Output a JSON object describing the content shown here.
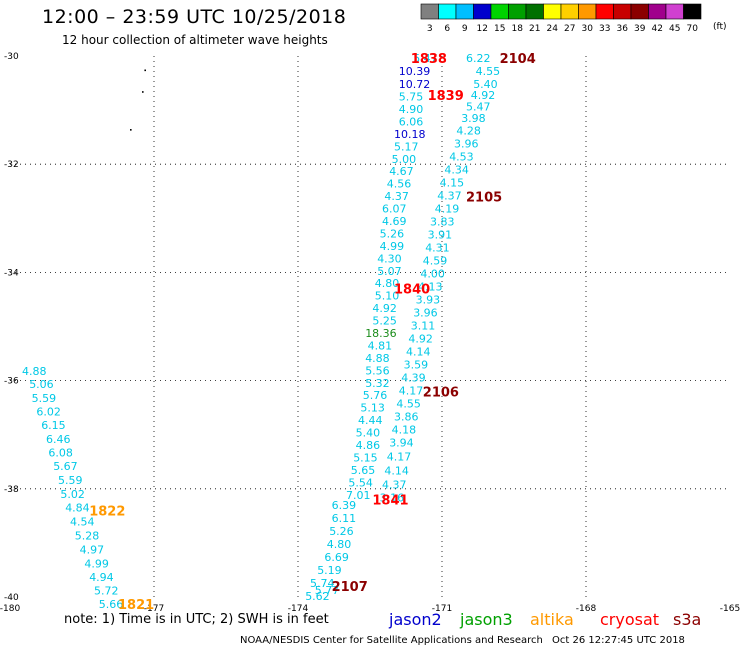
{
  "header": {
    "title": "12:00 – 23:59 UTC 10/25/2018",
    "subtitle": "12 hour collection of altimeter wave heights"
  },
  "colorbar": {
    "units": "(ft)",
    "bins": [
      {
        "label": "3",
        "color": "#808080"
      },
      {
        "label": "6",
        "color": "#00ffff"
      },
      {
        "label": "9",
        "color": "#00bfff"
      },
      {
        "label": "12",
        "color": "#0000cd"
      },
      {
        "label": "15",
        "color": "#00d400"
      },
      {
        "label": "18",
        "color": "#00a000"
      },
      {
        "label": "21",
        "color": "#007000"
      },
      {
        "label": "24",
        "color": "#ffff00"
      },
      {
        "label": "27",
        "color": "#ffd000"
      },
      {
        "label": "30",
        "color": "#ff9900"
      },
      {
        "label": "33",
        "color": "#ff0000"
      },
      {
        "label": "36",
        "color": "#c80000"
      },
      {
        "label": "39",
        "color": "#8b0000"
      },
      {
        "label": "42",
        "color": "#a0008c"
      },
      {
        "label": "45",
        "color": "#d040d0"
      },
      {
        "label": "70",
        "color": "#000000"
      }
    ]
  },
  "footer": {
    "note": "note:  1) Time is in UTC;  2) SWH is in feet",
    "credit": "NOAA/NESDIS Center for Satellite Applications and Research",
    "timestamp": "Oct 26 12:27:45 UTC 2018",
    "satellites": [
      {
        "name": "jason2",
        "color": "#0000cd"
      },
      {
        "name": "jason3",
        "color": "#00a000"
      },
      {
        "name": "altika",
        "color": "#ff9900"
      },
      {
        "name": "cryosat",
        "color": "#ff0000"
      },
      {
        "name": "s3a",
        "color": "#8b0000"
      }
    ]
  },
  "chart_data": {
    "type": "scatter",
    "xlim": [
      -180,
      -165
    ],
    "ylim": [
      -40,
      -30
    ],
    "x_ticks": [
      "-180",
      "-177",
      "-174",
      "-171",
      "-168",
      "-165"
    ],
    "y_ticks": [
      "-30",
      "-32",
      "-34",
      "-36",
      "-38",
      "-40"
    ],
    "grid": true,
    "colors": {
      "c6": "#00c8e6",
      "c12": "#0000cd",
      "c18": "#1a8c1a",
      "alt": "#ff9900",
      "cry": "#ff0000",
      "s3a": "#8b0000"
    },
    "series": [
      {
        "name": "track-1838",
        "points": [
          {
            "lon": -170.5,
            "lat": -30.04,
            "v": "6.22",
            "c": "c6"
          },
          {
            "lon": -170.3,
            "lat": -30.28,
            "v": "4.55",
            "c": "c6"
          },
          {
            "lon": -170.35,
            "lat": -30.52,
            "v": "5.40",
            "c": "c6"
          },
          {
            "lon": -170.4,
            "lat": -30.72,
            "v": "4.92",
            "c": "c6"
          },
          {
            "lon": -170.5,
            "lat": -30.93,
            "v": "5.47",
            "c": "c6"
          },
          {
            "lon": -170.6,
            "lat": -31.15,
            "v": "3.98",
            "c": "c6"
          },
          {
            "lon": -170.7,
            "lat": -31.38,
            "v": "4.28",
            "c": "c6"
          },
          {
            "lon": -170.75,
            "lat": -31.62,
            "v": "3.96",
            "c": "c6"
          },
          {
            "lon": -170.85,
            "lat": -31.86,
            "v": "4.53",
            "c": "c6"
          },
          {
            "lon": -170.95,
            "lat": -32.1,
            "v": "4.34",
            "c": "c6"
          },
          {
            "lon": -171.05,
            "lat": -32.34,
            "v": "4.15",
            "c": "c6"
          },
          {
            "lon": -171.1,
            "lat": -32.58,
            "v": "4.37",
            "c": "c6"
          },
          {
            "lon": -171.15,
            "lat": -32.82,
            "v": "4.19",
            "c": "c6"
          },
          {
            "lon": -171.25,
            "lat": -33.06,
            "v": "3.83",
            "c": "c6"
          },
          {
            "lon": -171.3,
            "lat": -33.3,
            "v": "3.91",
            "c": "c6"
          },
          {
            "lon": -171.35,
            "lat": -33.54,
            "v": "4.31",
            "c": "c6"
          },
          {
            "lon": -171.4,
            "lat": -33.78,
            "v": "4.59",
            "c": "c6"
          },
          {
            "lon": -171.45,
            "lat": -34.02,
            "v": "4.00",
            "c": "c6"
          },
          {
            "lon": -171.5,
            "lat": -34.26,
            "v": "4.13",
            "c": "c6"
          },
          {
            "lon": -171.55,
            "lat": -34.5,
            "v": "3.93",
            "c": "c6"
          },
          {
            "lon": -171.6,
            "lat": -34.74,
            "v": "3.96",
            "c": "c6"
          },
          {
            "lon": -171.65,
            "lat": -34.98,
            "v": "3.11",
            "c": "c6"
          },
          {
            "lon": -171.7,
            "lat": -35.22,
            "v": "4.92",
            "c": "c6"
          },
          {
            "lon": -171.75,
            "lat": -35.46,
            "v": "4.14",
            "c": "c6"
          },
          {
            "lon": -171.8,
            "lat": -35.7,
            "v": "3.59",
            "c": "c6"
          },
          {
            "lon": -171.85,
            "lat": -35.94,
            "v": "4.39",
            "c": "c6"
          },
          {
            "lon": -171.9,
            "lat": -36.18,
            "v": "4.17",
            "c": "c6"
          },
          {
            "lon": -171.95,
            "lat": -36.42,
            "v": "4.55",
            "c": "c6"
          },
          {
            "lon": -172.0,
            "lat": -36.66,
            "v": "3.86",
            "c": "c6"
          },
          {
            "lon": -172.05,
            "lat": -36.9,
            "v": "4.18",
            "c": "c6"
          },
          {
            "lon": -172.1,
            "lat": -37.14,
            "v": "3.94",
            "c": "c6"
          },
          {
            "lon": -172.15,
            "lat": -37.4,
            "v": "4.17",
            "c": "c6"
          },
          {
            "lon": -172.2,
            "lat": -37.66,
            "v": "4.14",
            "c": "c6"
          },
          {
            "lon": -172.25,
            "lat": -37.92,
            "v": "4.37",
            "c": "c6"
          },
          {
            "lon": -172.3,
            "lat": -38.16,
            "v": "3.16",
            "c": "c6"
          }
        ]
      },
      {
        "name": "track-1839-1840",
        "points": [
          {
            "lon": -171.6,
            "lat": -30.04,
            "v": "5.47",
            "c": "c6"
          },
          {
            "lon": -171.9,
            "lat": -30.28,
            "v": "10.39",
            "c": "c12"
          },
          {
            "lon": -171.9,
            "lat": -30.52,
            "v": "10.72",
            "c": "c12"
          },
          {
            "lon": -171.9,
            "lat": -30.75,
            "v": "5.75",
            "c": "c6"
          },
          {
            "lon": -171.9,
            "lat": -30.98,
            "v": "4.90",
            "c": "c6"
          },
          {
            "lon": -171.9,
            "lat": -31.21,
            "v": "6.06",
            "c": "c6"
          },
          {
            "lon": -172.0,
            "lat": -31.44,
            "v": "10.18",
            "c": "c12"
          },
          {
            "lon": -172.0,
            "lat": -31.67,
            "v": "5.17",
            "c": "c6"
          },
          {
            "lon": -172.05,
            "lat": -31.9,
            "v": "5.00",
            "c": "c6"
          },
          {
            "lon": -172.1,
            "lat": -32.13,
            "v": "4.67",
            "c": "c6"
          },
          {
            "lon": -172.15,
            "lat": -32.36,
            "v": "4.56",
            "c": "c6"
          },
          {
            "lon": -172.2,
            "lat": -32.59,
            "v": "4.37",
            "c": "c6"
          },
          {
            "lon": -172.25,
            "lat": -32.82,
            "v": "6.07",
            "c": "c6"
          },
          {
            "lon": -172.25,
            "lat": -33.05,
            "v": "4.69",
            "c": "c6"
          },
          {
            "lon": -172.3,
            "lat": -33.28,
            "v": "5.26",
            "c": "c6"
          },
          {
            "lon": -172.3,
            "lat": -33.51,
            "v": "4.99",
            "c": "c6"
          },
          {
            "lon": -172.35,
            "lat": -33.74,
            "v": "4.30",
            "c": "c6"
          },
          {
            "lon": -172.35,
            "lat": -33.97,
            "v": "5.07",
            "c": "c6"
          },
          {
            "lon": -172.4,
            "lat": -34.2,
            "v": "4.80",
            "c": "c6"
          },
          {
            "lon": -172.4,
            "lat": -34.43,
            "v": "5.10",
            "c": "c6"
          },
          {
            "lon": -172.45,
            "lat": -34.66,
            "v": "4.92",
            "c": "c6"
          },
          {
            "lon": -172.45,
            "lat": -34.89,
            "v": "5.25",
            "c": "c6"
          },
          {
            "lon": -172.6,
            "lat": -35.12,
            "v": "18.36",
            "c": "c18"
          },
          {
            "lon": -172.55,
            "lat": -35.35,
            "v": "4.81",
            "c": "c6"
          },
          {
            "lon": -172.6,
            "lat": -35.58,
            "v": "4.88",
            "c": "c6"
          },
          {
            "lon": -172.6,
            "lat": -35.81,
            "v": "5.56",
            "c": "c6"
          },
          {
            "lon": -172.6,
            "lat": -36.04,
            "v": "5.32",
            "c": "c6"
          },
          {
            "lon": -172.65,
            "lat": -36.27,
            "v": "5.76",
            "c": "c6"
          },
          {
            "lon": -172.7,
            "lat": -36.5,
            "v": "5.13",
            "c": "c6"
          },
          {
            "lon": -172.75,
            "lat": -36.73,
            "v": "4.44",
            "c": "c6"
          },
          {
            "lon": -172.8,
            "lat": -36.96,
            "v": "5.40",
            "c": "c6"
          },
          {
            "lon": -172.8,
            "lat": -37.19,
            "v": "4.86",
            "c": "c6"
          },
          {
            "lon": -172.85,
            "lat": -37.42,
            "v": "5.15",
            "c": "c6"
          },
          {
            "lon": -172.9,
            "lat": -37.65,
            "v": "5.65",
            "c": "c6"
          },
          {
            "lon": -172.95,
            "lat": -37.88,
            "v": "5.54",
            "c": "c6"
          },
          {
            "lon": -173.0,
            "lat": -38.11,
            "v": "7.01",
            "c": "c6"
          }
        ]
      },
      {
        "name": "track-2107",
        "points": [
          {
            "lon": -173.3,
            "lat": -38.3,
            "v": "6.39",
            "c": "c6"
          },
          {
            "lon": -173.3,
            "lat": -38.54,
            "v": "6.11",
            "c": "c6"
          },
          {
            "lon": -173.35,
            "lat": -38.78,
            "v": "5.26",
            "c": "c6"
          },
          {
            "lon": -173.4,
            "lat": -39.02,
            "v": "4.80",
            "c": "c6"
          },
          {
            "lon": -173.45,
            "lat": -39.26,
            "v": "6.69",
            "c": "c6"
          },
          {
            "lon": -173.6,
            "lat": -39.5,
            "v": "5.19",
            "c": "c6"
          },
          {
            "lon": -173.75,
            "lat": -39.74,
            "v": "5.74",
            "c": "c6"
          },
          {
            "lon": -173.65,
            "lat": -39.87,
            "v": "5.77",
            "c": "c6"
          },
          {
            "lon": -173.85,
            "lat": -39.98,
            "v": "5.62",
            "c": "c6"
          }
        ]
      },
      {
        "name": "track-1822-1821",
        "points": [
          {
            "lon": -179.75,
            "lat": -35.82,
            "v": "4.88",
            "c": "c6"
          },
          {
            "lon": -179.6,
            "lat": -36.06,
            "v": "5.06",
            "c": "c6"
          },
          {
            "lon": -179.55,
            "lat": -36.32,
            "v": "5.59",
            "c": "c6"
          },
          {
            "lon": -179.45,
            "lat": -36.57,
            "v": "6.02",
            "c": "c6"
          },
          {
            "lon": -179.35,
            "lat": -36.82,
            "v": "6.15",
            "c": "c6"
          },
          {
            "lon": -179.25,
            "lat": -37.08,
            "v": "6.46",
            "c": "c6"
          },
          {
            "lon": -179.2,
            "lat": -37.33,
            "v": "6.08",
            "c": "c6"
          },
          {
            "lon": -179.1,
            "lat": -37.58,
            "v": "5.67",
            "c": "c6"
          },
          {
            "lon": -179.0,
            "lat": -37.84,
            "v": "5.59",
            "c": "c6"
          },
          {
            "lon": -178.95,
            "lat": -38.1,
            "v": "5.02",
            "c": "c6"
          },
          {
            "lon": -178.85,
            "lat": -38.35,
            "v": "4.84",
            "c": "c6"
          },
          {
            "lon": -178.75,
            "lat": -38.6,
            "v": "4.54",
            "c": "c6"
          },
          {
            "lon": -178.65,
            "lat": -38.86,
            "v": "5.28",
            "c": "c6"
          },
          {
            "lon": -178.55,
            "lat": -39.12,
            "v": "4.97",
            "c": "c6"
          },
          {
            "lon": -178.45,
            "lat": -39.38,
            "v": "4.99",
            "c": "c6"
          },
          {
            "lon": -178.35,
            "lat": -39.63,
            "v": "4.94",
            "c": "c6"
          },
          {
            "lon": -178.25,
            "lat": -39.88,
            "v": "5.72",
            "c": "c6"
          },
          {
            "lon": -178.15,
            "lat": -40.13,
            "v": "5.66",
            "c": "c6"
          }
        ]
      }
    ],
    "time_labels": [
      {
        "lon": -171.65,
        "lat": -30.04,
        "t": "1838",
        "c": "cry"
      },
      {
        "lon": -169.8,
        "lat": -30.04,
        "t": "2104",
        "c": "s3a"
      },
      {
        "lon": -171.3,
        "lat": -30.72,
        "t": "1839",
        "c": "cry"
      },
      {
        "lon": -170.5,
        "lat": -32.6,
        "t": "2105",
        "c": "s3a"
      },
      {
        "lon": -172.0,
        "lat": -34.3,
        "t": "1840",
        "c": "cry"
      },
      {
        "lon": -171.4,
        "lat": -36.2,
        "t": "2106",
        "c": "s3a"
      },
      {
        "lon": -172.45,
        "lat": -38.2,
        "t": "1841",
        "c": "cry"
      },
      {
        "lon": -173.3,
        "lat": -39.8,
        "t": "2107",
        "c": "s3a"
      },
      {
        "lon": -178.35,
        "lat": -38.4,
        "t": "1822",
        "c": "alt"
      },
      {
        "lon": -177.75,
        "lat": -40.13,
        "t": "1821",
        "c": "alt"
      }
    ],
    "dots": [
      {
        "lon": -177.2,
        "lat": -30.25
      },
      {
        "lon": -177.25,
        "lat": -30.65
      },
      {
        "lon": -177.5,
        "lat": -31.35
      }
    ]
  }
}
